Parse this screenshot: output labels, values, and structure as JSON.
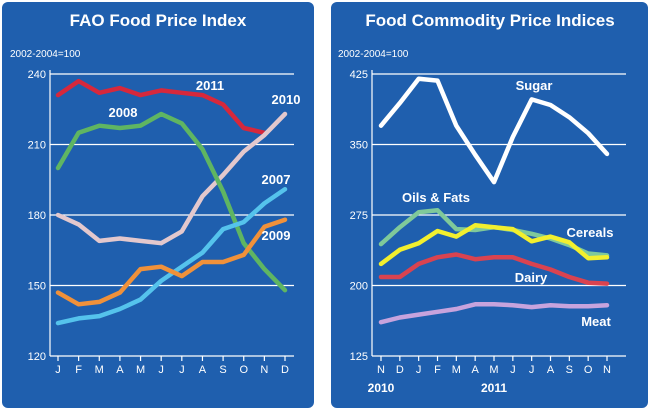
{
  "chart_data": [
    {
      "type": "line",
      "title": "FAO Food Price Index",
      "subtitle": "2002-2004=100",
      "ylim": [
        120,
        240
      ],
      "yticks": [
        120,
        150,
        180,
        210,
        240
      ],
      "categories": [
        "J",
        "F",
        "M",
        "A",
        "M",
        "J",
        "J",
        "A",
        "S",
        "O",
        "N",
        "D"
      ],
      "grid": true,
      "series": [
        {
          "name": "2011",
          "color": "#d6283c",
          "values": [
            231,
            237,
            232,
            234,
            231,
            233,
            232,
            231,
            227,
            217,
            215,
            null
          ]
        },
        {
          "name": "2010",
          "color": "#e3c8cd",
          "values": [
            180,
            176,
            169,
            170,
            169,
            168,
            173,
            188,
            197,
            207,
            214,
            223
          ]
        },
        {
          "name": "2008",
          "color": "#5fb562",
          "values": [
            200,
            215,
            218,
            217,
            218,
            223,
            219,
            208,
            190,
            168,
            157,
            148
          ]
        },
        {
          "name": "2007",
          "color": "#55c3ec",
          "values": [
            134,
            136,
            137,
            140,
            144,
            152,
            158,
            164,
            174,
            177,
            185,
            191
          ]
        },
        {
          "name": "2009",
          "color": "#f0913a",
          "values": [
            147,
            142,
            143,
            147,
            157,
            158,
            154,
            160,
            160,
            163,
            175,
            178
          ]
        }
      ]
    },
    {
      "type": "line",
      "title": "Food Commodity Price Indices",
      "subtitle": "2002-2004=100",
      "ylim": [
        125,
        425
      ],
      "yticks": [
        125,
        200,
        275,
        350,
        425
      ],
      "categories": [
        "N",
        "D",
        "J",
        "F",
        "M",
        "A",
        "M",
        "J",
        "J",
        "A",
        "S",
        "O",
        "N"
      ],
      "year_labels": {
        "2010": 0,
        "2011": 6
      },
      "grid": true,
      "series": [
        {
          "name": "Sugar",
          "color": "#ffffff",
          "values": [
            370,
            394,
            420,
            418,
            370,
            339,
            310,
            358,
            398,
            392,
            379,
            362,
            340
          ]
        },
        {
          "name": "Oils & Fats",
          "color": "#7fc99a",
          "values": [
            244,
            262,
            278,
            280,
            260,
            259,
            262,
            259,
            255,
            250,
            243,
            234,
            232
          ]
        },
        {
          "name": "Cereals",
          "color": "#f2ef2e",
          "values": [
            223,
            238,
            245,
            258,
            252,
            264,
            262,
            260,
            247,
            252,
            246,
            229,
            230
          ]
        },
        {
          "name": "Dairy",
          "color": "#d94350",
          "values": [
            209,
            209,
            223,
            230,
            233,
            228,
            230,
            230,
            223,
            217,
            209,
            203,
            202
          ]
        },
        {
          "name": "Meat",
          "color": "#c7a3dd",
          "values": [
            161,
            166,
            169,
            172,
            175,
            180,
            180,
            179,
            177,
            179,
            178,
            178,
            179
          ]
        }
      ]
    }
  ]
}
